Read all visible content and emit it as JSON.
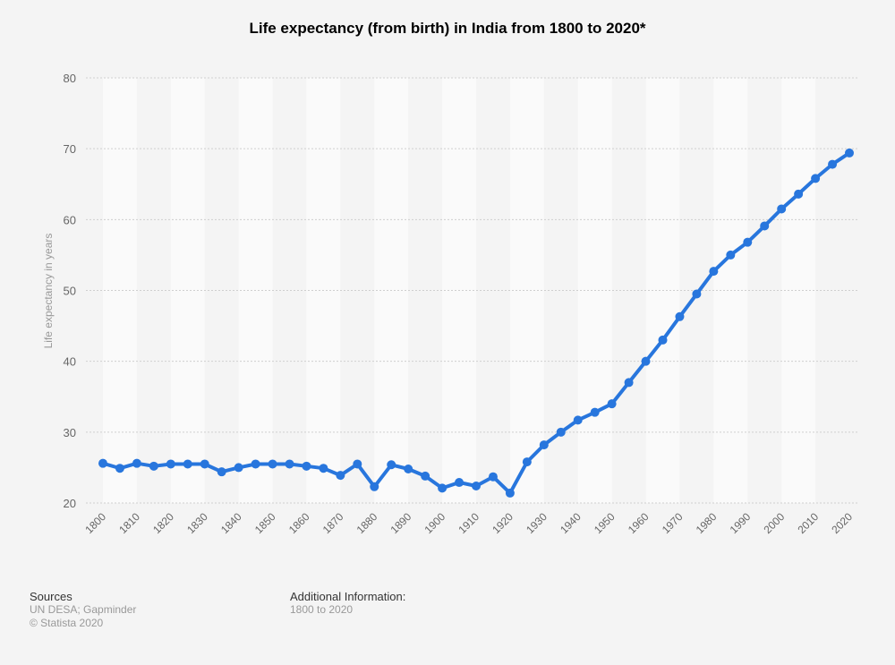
{
  "chart_data": {
    "type": "line",
    "title": "Life expectancy (from birth) in India from 1800 to 2020*",
    "xlabel": "",
    "ylabel": "Life expectancy in years",
    "ylim": [
      20,
      80
    ],
    "yticks": [
      20,
      30,
      40,
      50,
      60,
      70,
      80
    ],
    "xticks": [
      1800,
      1810,
      1820,
      1830,
      1840,
      1850,
      1860,
      1870,
      1880,
      1890,
      1900,
      1910,
      1920,
      1930,
      1940,
      1950,
      1960,
      1970,
      1980,
      1990,
      2000,
      2010,
      2020
    ],
    "grid": true,
    "series": [
      {
        "name": "Life expectancy",
        "color": "#2876dd",
        "x": [
          1800,
          1805,
          1810,
          1815,
          1820,
          1825,
          1830,
          1835,
          1840,
          1845,
          1850,
          1855,
          1860,
          1865,
          1870,
          1875,
          1880,
          1885,
          1890,
          1895,
          1900,
          1905,
          1910,
          1915,
          1920,
          1925,
          1930,
          1935,
          1940,
          1945,
          1950,
          1955,
          1960,
          1965,
          1970,
          1975,
          1980,
          1985,
          1990,
          1995,
          2000,
          2005,
          2010,
          2015,
          2020
        ],
        "values": [
          25.6,
          24.9,
          25.6,
          25.2,
          25.5,
          25.5,
          25.5,
          24.4,
          25.0,
          25.5,
          25.5,
          25.5,
          25.2,
          24.9,
          23.9,
          25.5,
          22.3,
          25.4,
          24.8,
          23.8,
          22.1,
          22.9,
          22.4,
          23.7,
          21.4,
          25.8,
          28.2,
          30.0,
          31.7,
          32.8,
          34.0,
          37.0,
          40.0,
          43.0,
          46.3,
          49.5,
          52.7,
          55.0,
          56.8,
          59.1,
          61.5,
          63.6,
          65.8,
          67.8,
          69.4
        ]
      }
    ]
  },
  "footer": {
    "sources_label": "Sources",
    "sources_text": "UN DESA; Gapminder",
    "copyright": "© Statista 2020",
    "additional_label": "Additional Information:",
    "additional_text": "1800 to 2020"
  }
}
